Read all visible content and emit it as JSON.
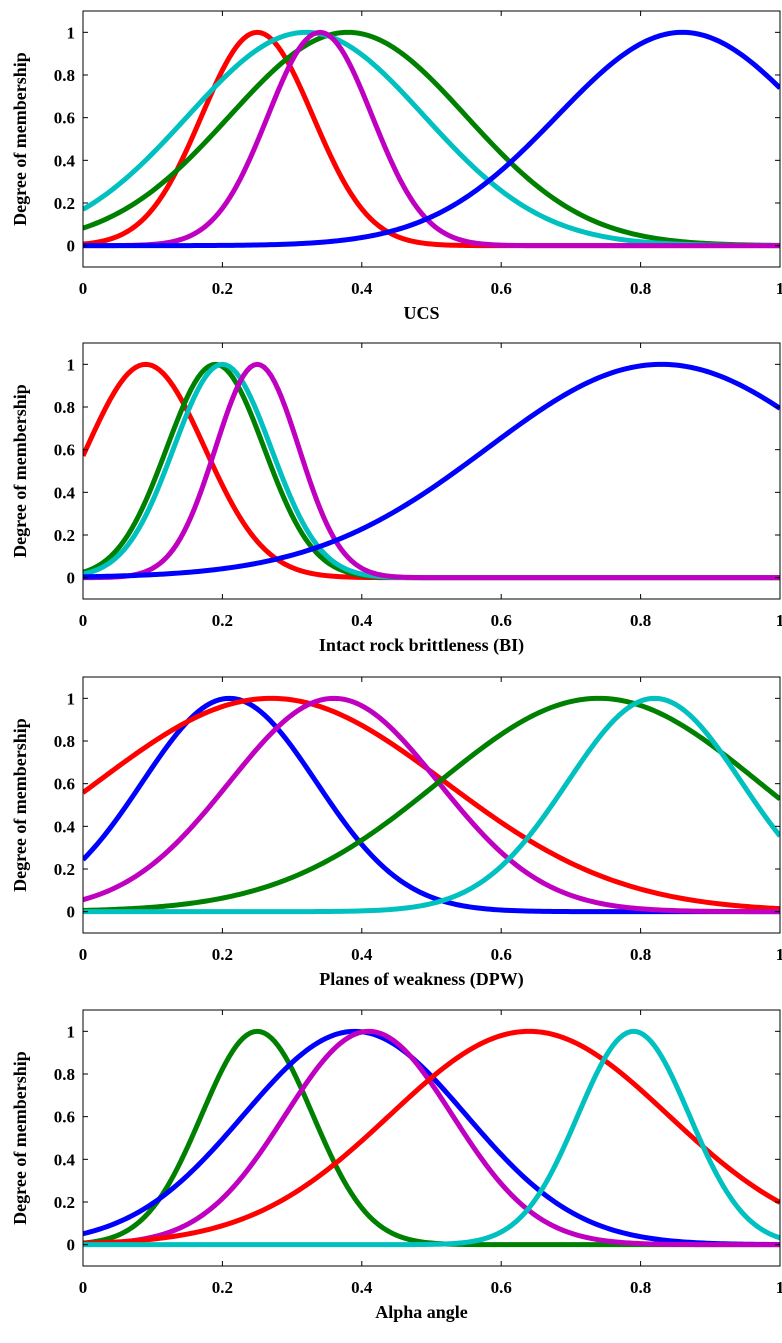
{
  "chart_data": [
    {
      "type": "line",
      "xlabel": "UCS",
      "ylabel": "Degree of membership",
      "xlim": [
        0,
        1
      ],
      "ylim": [
        -0.1,
        1.1
      ],
      "xticks": [
        "0",
        "0.2",
        "0.4",
        "0.6",
        "0.8",
        "1"
      ],
      "yticks": [
        "0",
        "0.2",
        "0.4",
        "0.6",
        "0.8",
        "1"
      ],
      "series": [
        {
          "color": "#ff0000",
          "mean": 0.25,
          "sigma": 0.08
        },
        {
          "color": "#008000",
          "mean": 0.38,
          "sigma": 0.17
        },
        {
          "color": "#00c0c0",
          "mean": 0.32,
          "sigma": 0.17
        },
        {
          "color": "#c000c0",
          "mean": 0.34,
          "sigma": 0.075
        },
        {
          "color": "#0000ff",
          "mean": 0.86,
          "sigma": 0.18
        }
      ]
    },
    {
      "type": "line",
      "xlabel": "Intact rock brittleness (BI)",
      "ylabel": "Degree of membership",
      "xlim": [
        0,
        1
      ],
      "ylim": [
        -0.1,
        1.1
      ],
      "xticks": [
        "0",
        "0.2",
        "0.4",
        "0.6",
        "0.8",
        "1"
      ],
      "yticks": [
        "0",
        "0.2",
        "0.4",
        "0.6",
        "0.8",
        "1"
      ],
      "series": [
        {
          "color": "#ff0000",
          "mean": 0.09,
          "sigma": 0.085
        },
        {
          "color": "#008000",
          "mean": 0.19,
          "sigma": 0.07
        },
        {
          "color": "#00c0c0",
          "mean": 0.2,
          "sigma": 0.07
        },
        {
          "color": "#c000c0",
          "mean": 0.25,
          "sigma": 0.06
        },
        {
          "color": "#0000ff",
          "mean": 0.83,
          "sigma": 0.25
        }
      ]
    },
    {
      "type": "line",
      "xlabel": "Planes of weakness (DPW)",
      "ylabel": "Degree of membership",
      "xlim": [
        0,
        1
      ],
      "ylim": [
        -0.1,
        1.1
      ],
      "xticks": [
        "0",
        "0.2",
        "0.4",
        "0.6",
        "0.8",
        "1"
      ],
      "yticks": [
        "0",
        "0.2",
        "0.4",
        "0.6",
        "0.8",
        "1"
      ],
      "series": [
        {
          "color": "#0000ff",
          "mean": 0.21,
          "sigma": 0.125
        },
        {
          "color": "#ff0000",
          "mean": 0.27,
          "sigma": 0.25
        },
        {
          "color": "#c000c0",
          "mean": 0.36,
          "sigma": 0.15
        },
        {
          "color": "#008000",
          "mean": 0.74,
          "sigma": 0.23
        },
        {
          "color": "#00c0c0",
          "mean": 0.82,
          "sigma": 0.125
        }
      ]
    },
    {
      "type": "line",
      "xlabel": "Alpha angle",
      "ylabel": "Degree of membership",
      "xlim": [
        0,
        1
      ],
      "ylim": [
        -0.1,
        1.1
      ],
      "xticks": [
        "0",
        "0.2",
        "0.4",
        "0.6",
        "0.8",
        "1"
      ],
      "yticks": [
        "0",
        "0.2",
        "0.4",
        "0.6",
        "0.8",
        "1"
      ],
      "series": [
        {
          "color": "#008000",
          "mean": 0.25,
          "sigma": 0.08
        },
        {
          "color": "#0000ff",
          "mean": 0.39,
          "sigma": 0.16
        },
        {
          "color": "#c000c0",
          "mean": 0.41,
          "sigma": 0.12
        },
        {
          "color": "#ff0000",
          "mean": 0.64,
          "sigma": 0.2
        },
        {
          "color": "#00c0c0",
          "mean": 0.79,
          "sigma": 0.08
        }
      ]
    }
  ]
}
